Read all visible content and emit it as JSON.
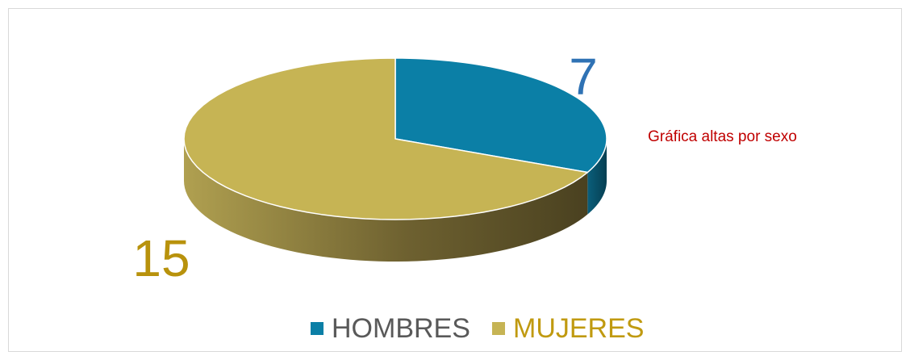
{
  "chart_data": {
    "type": "pie3d",
    "title": "Gráfica altas por sexo",
    "categories": [
      "HOMBRES",
      "MUJERES"
    ],
    "values": [
      7,
      15
    ],
    "colors": [
      "#0b7fa6",
      "#c6b454"
    ],
    "label_colors": [
      "#2f72b4",
      "#b8920c"
    ],
    "legend_text_colors": [
      "#595959",
      "#c09a10"
    ],
    "legend": "bottom"
  }
}
